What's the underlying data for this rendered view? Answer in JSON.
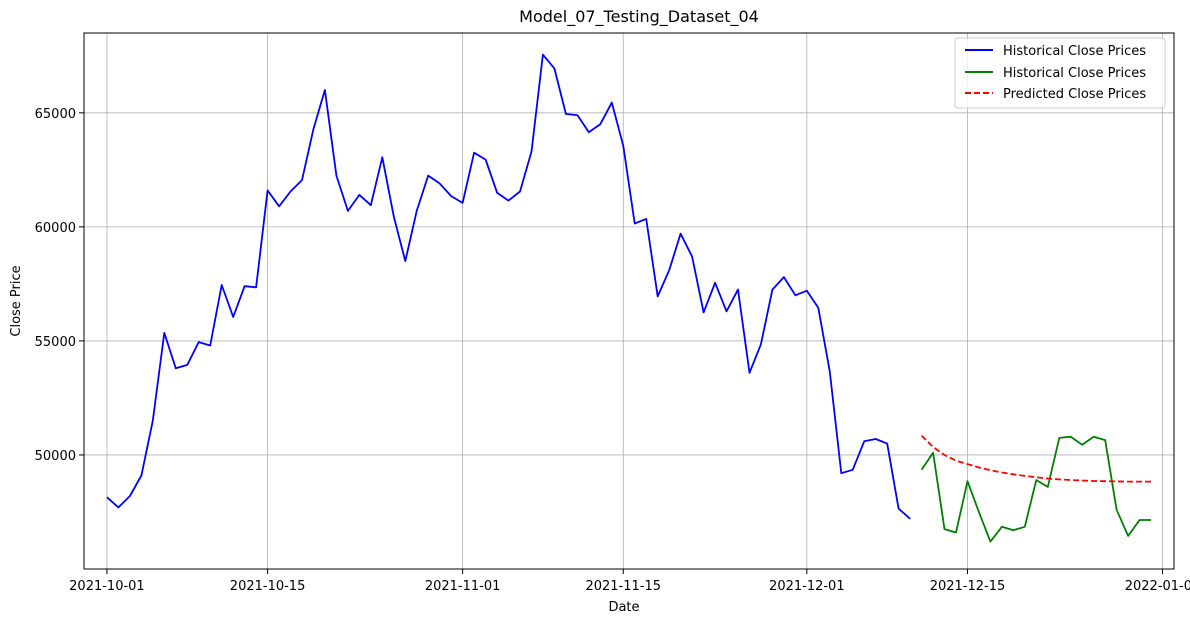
{
  "chart_data": {
    "type": "line",
    "title": "Model_07_Testing_Dataset_04",
    "xlabel": "Date",
    "ylabel": "Close Price",
    "xlim": [
      "2021-09-29",
      "2022-01-02"
    ],
    "ylim": [
      45000,
      68500
    ],
    "x_ticks": [
      "2021-10-01",
      "2021-10-15",
      "2021-11-01",
      "2021-11-15",
      "2021-12-01",
      "2021-12-15",
      "2022-01-01"
    ],
    "y_ticks": [
      50000,
      55000,
      60000,
      65000
    ],
    "grid": true,
    "legend_position": "top-right",
    "series": [
      {
        "name": "Historical Close Prices",
        "color": "#0000ff",
        "style": "solid",
        "x": [
          "2021-10-01",
          "2021-10-02",
          "2021-10-03",
          "2021-10-04",
          "2021-10-05",
          "2021-10-06",
          "2021-10-07",
          "2021-10-08",
          "2021-10-09",
          "2021-10-10",
          "2021-10-11",
          "2021-10-12",
          "2021-10-13",
          "2021-10-14",
          "2021-10-15",
          "2021-10-16",
          "2021-10-17",
          "2021-10-18",
          "2021-10-19",
          "2021-10-20",
          "2021-10-21",
          "2021-10-22",
          "2021-10-23",
          "2021-10-24",
          "2021-10-25",
          "2021-10-26",
          "2021-10-27",
          "2021-10-28",
          "2021-10-29",
          "2021-10-30",
          "2021-10-31",
          "2021-11-01",
          "2021-11-02",
          "2021-11-03",
          "2021-11-04",
          "2021-11-05",
          "2021-11-06",
          "2021-11-07",
          "2021-11-08",
          "2021-11-09",
          "2021-11-10",
          "2021-11-11",
          "2021-11-12",
          "2021-11-13",
          "2021-11-14",
          "2021-11-15",
          "2021-11-16",
          "2021-11-17",
          "2021-11-18",
          "2021-11-19",
          "2021-11-20",
          "2021-11-21",
          "2021-11-22",
          "2021-11-23",
          "2021-11-24",
          "2021-11-25",
          "2021-11-26",
          "2021-11-27",
          "2021-11-28",
          "2021-11-29",
          "2021-11-30",
          "2021-12-01",
          "2021-12-02",
          "2021-12-03",
          "2021-12-04",
          "2021-12-05",
          "2021-12-06",
          "2021-12-07",
          "2021-12-08",
          "2021-12-09",
          "2021-12-10"
        ],
        "values": [
          48150,
          47700,
          48200,
          49100,
          51500,
          55350,
          53800,
          53950,
          54950,
          54800,
          57450,
          56050,
          57400,
          57350,
          61600,
          60900,
          61550,
          62050,
          64300,
          66000,
          62250,
          60700,
          61400,
          60950,
          63050,
          60450,
          58500,
          60700,
          62250,
          61900,
          61350,
          61050,
          63250,
          62950,
          61500,
          61150,
          61550,
          63300,
          67550,
          66950,
          64950,
          64900,
          64150,
          64500,
          65450,
          63550,
          60150,
          60350,
          56950,
          58100,
          59700,
          58700,
          56250,
          57550,
          56300,
          57250,
          53600,
          54850,
          57250,
          57800,
          57000,
          57200,
          56450,
          53650,
          49200,
          49350,
          50600,
          50700,
          50500,
          47650,
          47200
        ]
      },
      {
        "name": "Historical Close Prices",
        "color": "#008000",
        "style": "solid",
        "x": [
          "2021-12-11",
          "2021-12-12",
          "2021-12-13",
          "2021-12-14",
          "2021-12-15",
          "2021-12-16",
          "2021-12-17",
          "2021-12-18",
          "2021-12-19",
          "2021-12-20",
          "2021-12-21",
          "2021-12-22",
          "2021-12-23",
          "2021-12-24",
          "2021-12-25",
          "2021-12-26",
          "2021-12-27",
          "2021-12-28",
          "2021-12-29",
          "2021-12-30",
          "2021-12-31"
        ],
        "values": [
          49350,
          50100,
          46750,
          46600,
          48850,
          47500,
          46200,
          46850,
          46700,
          46850,
          48900,
          48600,
          50750,
          50800,
          50450,
          50800,
          50650,
          47600,
          46450,
          47150,
          47150
        ]
      },
      {
        "name": "Predicted Close Prices",
        "color": "#ff0000",
        "style": "dashed",
        "x": [
          "2021-12-11",
          "2021-12-12",
          "2021-12-13",
          "2021-12-14",
          "2021-12-15",
          "2021-12-16",
          "2021-12-17",
          "2021-12-18",
          "2021-12-19",
          "2021-12-20",
          "2021-12-21",
          "2021-12-22",
          "2021-12-23",
          "2021-12-24",
          "2021-12-25",
          "2021-12-26",
          "2021-12-27",
          "2021-12-28",
          "2021-12-29",
          "2021-12-30",
          "2021-12-31"
        ],
        "values": [
          50850,
          50350,
          50000,
          49750,
          49600,
          49450,
          49330,
          49230,
          49150,
          49080,
          49020,
          48970,
          48930,
          48900,
          48880,
          48860,
          48850,
          48840,
          48830,
          48830,
          48830
        ]
      }
    ]
  }
}
